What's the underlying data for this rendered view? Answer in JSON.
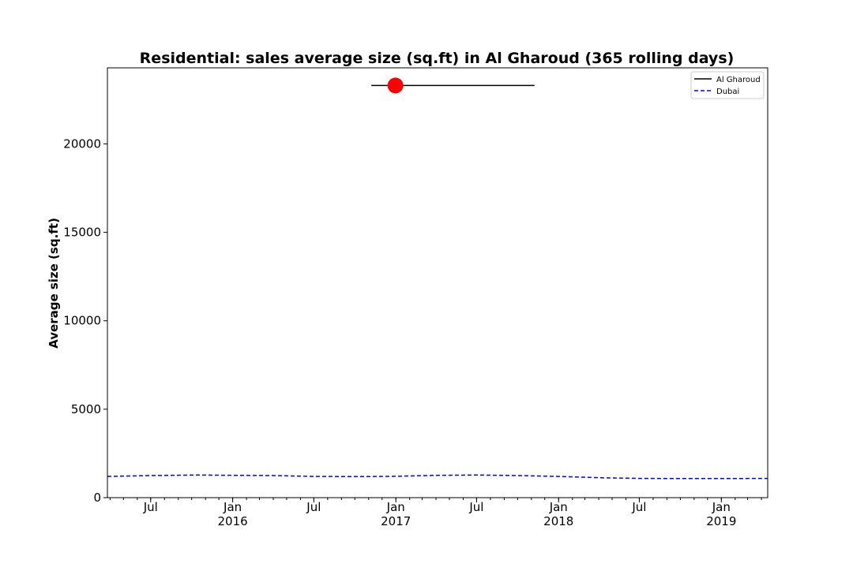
{
  "chart_data": {
    "type": "line",
    "title": "Residential: sales average size (sq.ft) in Al Gharoud (365 rolling days)",
    "xlabel": "",
    "ylabel": "Average size (sq.ft)",
    "xlim": [
      "2015-03-26",
      "2019-04-15"
    ],
    "ylim": [
      0,
      24300
    ],
    "yticks": [
      0,
      5000,
      10000,
      15000,
      20000
    ],
    "xticks": [
      {
        "date": "2015-07-01",
        "label": "Jul"
      },
      {
        "date": "2016-01-01",
        "label": "Jan\n2016"
      },
      {
        "date": "2016-07-01",
        "label": "Jul"
      },
      {
        "date": "2017-01-01",
        "label": "Jan\n2017"
      },
      {
        "date": "2017-07-01",
        "label": "Jul"
      },
      {
        "date": "2018-01-01",
        "label": "Jan\n2018"
      },
      {
        "date": "2018-07-01",
        "label": "Jul"
      },
      {
        "date": "2019-01-01",
        "label": "Jan\n2019"
      }
    ],
    "grid": false,
    "legend": "top-right",
    "series": [
      {
        "name": "Al Gharoud",
        "color": "#000000",
        "style": "solid",
        "x": [
          "2016-11-07",
          "2017-11-08"
        ],
        "y": [
          23300,
          23300
        ],
        "marker": {
          "x": "2016-12-31",
          "y": 23300,
          "color": "#ff0000"
        }
      },
      {
        "name": "Dubai",
        "color": "#0000ff",
        "style": "dashed",
        "x": [
          "2015-03-26",
          "2015-07-01",
          "2015-10-15",
          "2016-01-01",
          "2016-04-01",
          "2016-07-01",
          "2016-10-15",
          "2017-01-01",
          "2017-04-01",
          "2017-07-01",
          "2017-10-01",
          "2018-01-01",
          "2018-04-01",
          "2018-07-01",
          "2018-10-01",
          "2019-01-01",
          "2019-04-15"
        ],
        "y": [
          1200,
          1250,
          1280,
          1260,
          1250,
          1200,
          1190,
          1210,
          1260,
          1280,
          1250,
          1200,
          1130,
          1090,
          1080,
          1080,
          1090
        ]
      }
    ]
  }
}
